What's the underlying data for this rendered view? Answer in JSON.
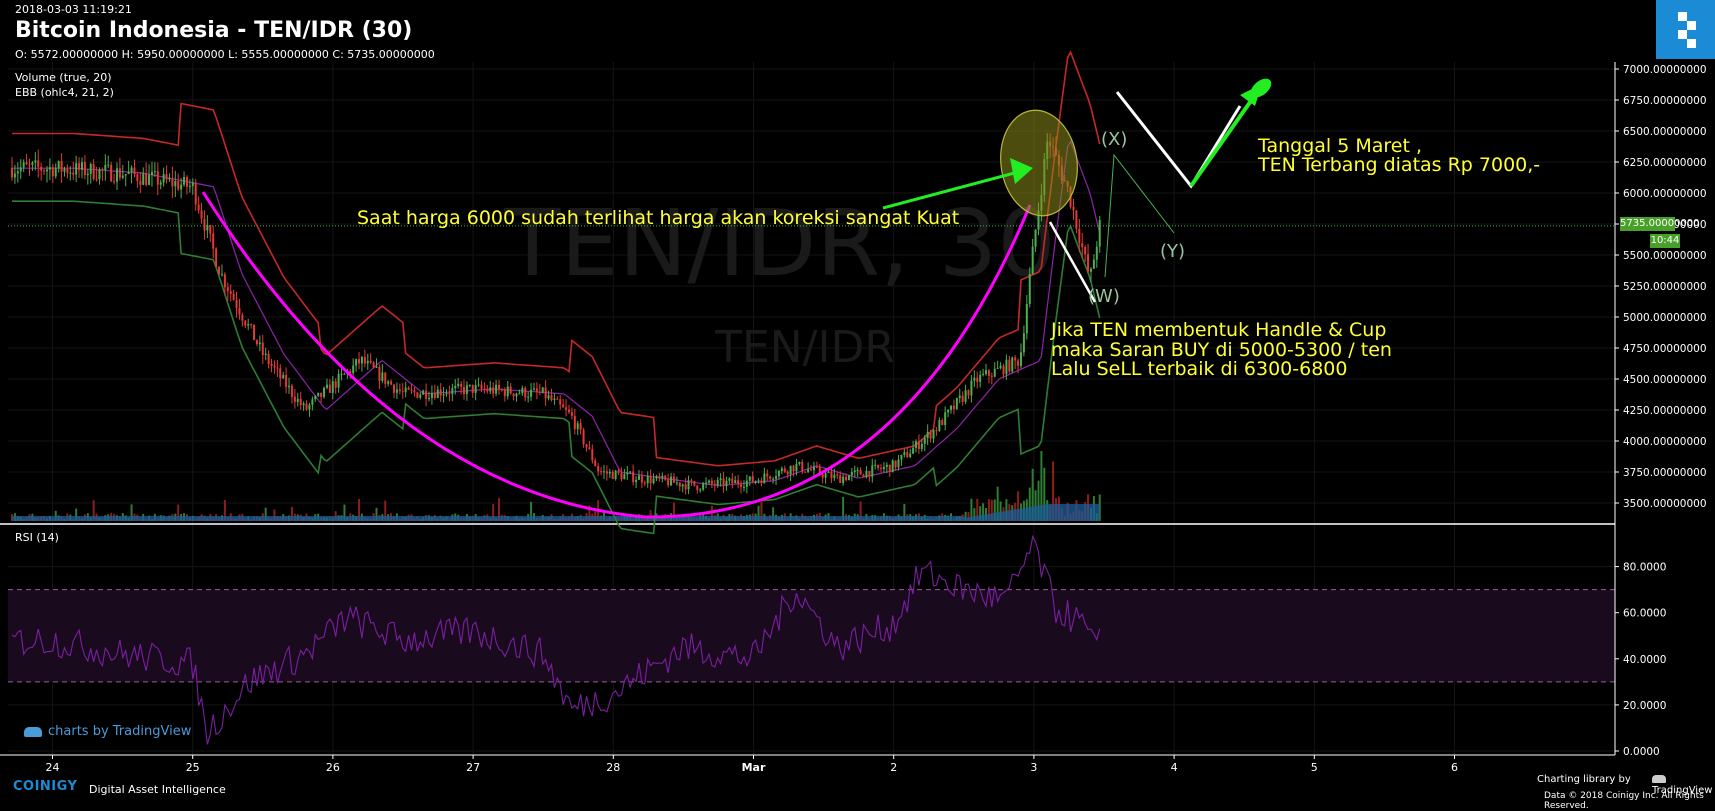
{
  "header": {
    "timestamp": "2018-03-03 11:19:21",
    "title": "Bitcoin Indonesia - TEN/IDR (30)",
    "ohlc": "O: 5572.00000000 H: 5950.00000000 L: 5555.00000000 C: 5735.00000000"
  },
  "indicators": {
    "volume": "Volume (true, 20)",
    "ebb": "EBB (ohlc4, 21, 2)",
    "rsi": "RSI (14)"
  },
  "watermark": {
    "big": "TEN/IDR, 30",
    "small": "TEN/IDR"
  },
  "annotations": {
    "correction": "Saat harga 6000 sudah terlihat harga akan koreksi sangat Kuat",
    "target_line1": "Tanggal 5 Maret ,",
    "target_line2": "TEN Terbang diatas Rp 7000,-",
    "handle_line1": "Jika TEN membentuk Handle & Cup",
    "handle_line2": "maka Saran BUY di 5000-5300 / ten",
    "handle_line3": "Lalu SeLL terbaik di 6300-6800",
    "wave_x": "(X)",
    "wave_y": "(Y)",
    "wave_w": "(W)"
  },
  "price_axis": {
    "ticks": [
      "7000.00000000",
      "6750.00000000",
      "6500.00000000",
      "6250.00000000",
      "6000.00000000",
      "5750.00000000",
      "5500.00000000",
      "5250.00000000",
      "5000.00000000",
      "4750.00000000",
      "4500.00000000",
      "4250.00000000",
      "4000.00000000",
      "3750.00000000",
      "3500.00000000"
    ],
    "current_price": "5735.00000000",
    "countdown": "10:44"
  },
  "rsi_axis": {
    "ticks": [
      "80.0000",
      "60.0000",
      "40.0000",
      "20.0000",
      "0.0000"
    ]
  },
  "time_axis": {
    "labels": [
      "24",
      "25",
      "26",
      "27",
      "28",
      "Mar",
      "2",
      "3",
      "4",
      "5",
      "6"
    ]
  },
  "footer": {
    "tv_credit": "charts by TradingView",
    "brand": "COINIGY",
    "tagline": "Digital Asset Intelligence",
    "library": "Charting library by",
    "tradingview": "TradingView",
    "copyright": "Data © 2018 Coinigy Inc. All Rights Reserved."
  },
  "colors": {
    "background": "#000000",
    "up": "#4caf50",
    "down": "#e53935",
    "upper_band": "#c62828",
    "lower_band": "#2e7d32",
    "basis": "#8e24aa",
    "cup_curve": "#ff00ff",
    "annotation_text": "#ffff33",
    "arrow_green": "#22ee22",
    "rsi_line": "#7b1fa2",
    "coinigy_blue": "#1b8bd6"
  },
  "chart_data": [
    {
      "type": "candlestick",
      "symbol": "TEN/IDR",
      "interval": "30",
      "ylim": [
        3400,
        7080
      ],
      "x_labels": [
        "24",
        "25",
        "26",
        "27",
        "28",
        "Mar",
        "2",
        "3",
        "4",
        "5",
        "6"
      ],
      "series": [
        {
          "name": "Volume (true, 20)",
          "values": [
            {
              "x": 24.0,
              "y": 6200
            },
            {
              "x": 24.5,
              "y": 6160
            },
            {
              "x": 25.0,
              "y": 6050
            },
            {
              "x": 25.2,
              "y": 5350
            },
            {
              "x": 25.5,
              "y": 4700
            },
            {
              "x": 25.8,
              "y": 4250
            },
            {
              "x": 26.0,
              "y": 4450
            },
            {
              "x": 26.2,
              "y": 4650
            },
            {
              "x": 26.5,
              "y": 4380
            },
            {
              "x": 27.0,
              "y": 4420
            },
            {
              "x": 27.5,
              "y": 4380
            },
            {
              "x": 27.7,
              "y": 4200
            },
            {
              "x": 27.9,
              "y": 3750
            },
            {
              "x": 28.2,
              "y": 3700
            },
            {
              "x": 28.6,
              "y": 3640
            },
            {
              "x": 29.0,
              "y": 3680
            },
            {
              "x": 29.3,
              "y": 3800
            },
            {
              "x": 29.6,
              "y": 3700
            },
            {
              "x": 30.0,
              "y": 3800
            },
            {
              "x": 30.3,
              "y": 4100
            },
            {
              "x": 30.6,
              "y": 4500
            },
            {
              "x": 30.9,
              "y": 4650
            },
            {
              "x": 31.0,
              "y": 5600
            },
            {
              "x": 31.1,
              "y": 6450
            },
            {
              "x": 31.25,
              "y": 6000
            },
            {
              "x": 31.4,
              "y": 5300
            },
            {
              "x": 31.47,
              "y": 5735
            }
          ]
        }
      ],
      "last_close": 5735,
      "open": 5572,
      "high": 5950,
      "low": 5555,
      "close": 5735
    },
    {
      "type": "line",
      "title": "RSI (14)",
      "ylim": [
        0,
        95
      ],
      "reference_lines": [
        70,
        30
      ],
      "series": [
        {
          "name": "RSI (14)",
          "values": [
            {
              "x": 24.0,
              "y": 48
            },
            {
              "x": 24.5,
              "y": 42
            },
            {
              "x": 25.0,
              "y": 38
            },
            {
              "x": 25.1,
              "y": 8
            },
            {
              "x": 25.4,
              "y": 30
            },
            {
              "x": 25.8,
              "y": 42
            },
            {
              "x": 26.1,
              "y": 58
            },
            {
              "x": 26.5,
              "y": 48
            },
            {
              "x": 27.0,
              "y": 52
            },
            {
              "x": 27.5,
              "y": 42
            },
            {
              "x": 27.7,
              "y": 18
            },
            {
              "x": 28.0,
              "y": 25
            },
            {
              "x": 28.5,
              "y": 45
            },
            {
              "x": 29.0,
              "y": 40
            },
            {
              "x": 29.3,
              "y": 70
            },
            {
              "x": 29.6,
              "y": 45
            },
            {
              "x": 30.0,
              "y": 55
            },
            {
              "x": 30.2,
              "y": 78
            },
            {
              "x": 30.5,
              "y": 70
            },
            {
              "x": 30.8,
              "y": 65
            },
            {
              "x": 31.0,
              "y": 90
            },
            {
              "x": 31.15,
              "y": 62
            },
            {
              "x": 31.35,
              "y": 55
            },
            {
              "x": 31.45,
              "y": 42
            },
            {
              "x": 31.47,
              "y": 56
            }
          ]
        }
      ]
    }
  ]
}
